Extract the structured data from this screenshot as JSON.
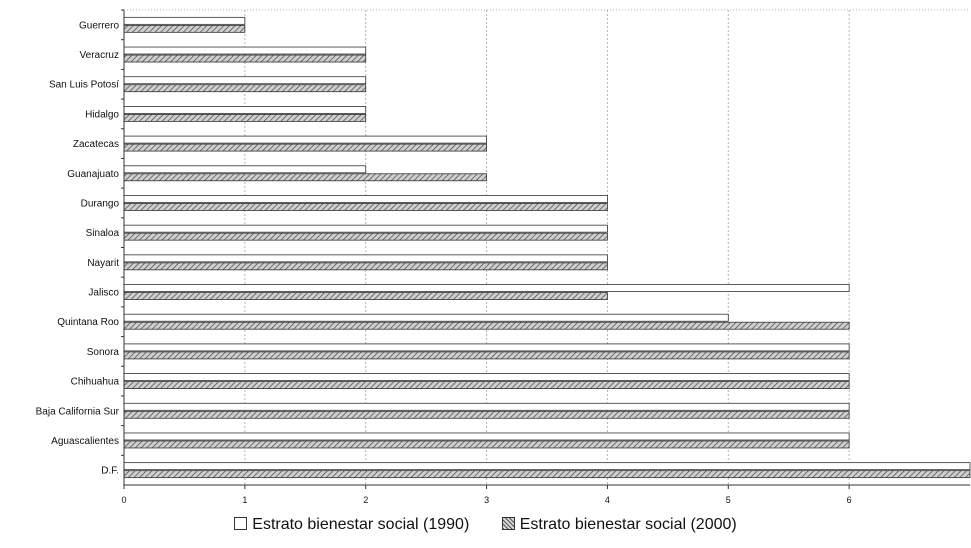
{
  "chart_data": {
    "type": "bar",
    "orientation": "horizontal",
    "categories": [
      "Guerrero",
      "Veracruz",
      "San Luis Potosí",
      "Hidalgo",
      "Zacatecas",
      "Guanajuato",
      "Durango",
      "Sinaloa",
      "Nayarit",
      "Jalisco",
      "Quintana Roo",
      "Sonora",
      "Chihuahua",
      "Baja California Sur",
      "Aguascalientes",
      "D.F."
    ],
    "series": [
      {
        "name": "Estrato bienestar social (1990)",
        "color": "#ffffff",
        "values": [
          1,
          2,
          2,
          2,
          3,
          2,
          4,
          4,
          4,
          6,
          5,
          6,
          6,
          6,
          6,
          7
        ]
      },
      {
        "name": "Estrato bienestar social (2000)",
        "color": "#9a9a9a",
        "values": [
          1,
          2,
          2,
          2,
          3,
          3,
          4,
          4,
          4,
          4,
          6,
          6,
          6,
          6,
          6,
          7
        ]
      }
    ],
    "xlim": [
      0,
      7
    ],
    "xticks": [
      0,
      1,
      2,
      3,
      4,
      5,
      6
    ],
    "grid": true,
    "legend_position": "bottom"
  },
  "legend": {
    "items": [
      {
        "label": "Estrato bienestar social (1990)"
      },
      {
        "label": "Estrato bienestar social (2000)"
      }
    ]
  }
}
